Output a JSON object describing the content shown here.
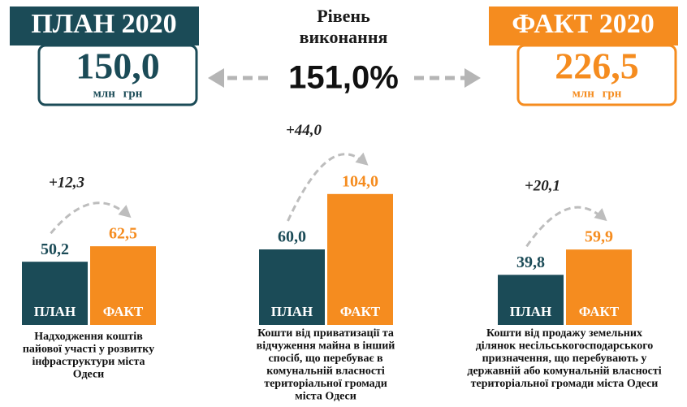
{
  "header": {
    "plan": {
      "title": "ПЛАН 2020",
      "value": "150,0",
      "unit": "млн грн",
      "color": "#1b4b57"
    },
    "fact": {
      "title": "ФАКТ 2020",
      "value": "226,5",
      "unit": "млн грн",
      "color": "#f58c1f"
    },
    "center": {
      "title": [
        "Рівень",
        "виконання"
      ],
      "value": "151,0%"
    }
  },
  "chart_data": [
    {
      "type": "bar",
      "categories": [
        "ПЛАН",
        "ФАКТ"
      ],
      "values": [
        50.2,
        62.5
      ],
      "value_labels": [
        "50,2",
        "62,5"
      ],
      "colors": [
        "#1b4b57",
        "#f58c1f"
      ],
      "annotation": "+12,3",
      "caption": [
        "Надходження коштів",
        "пайової участі у розвитку",
        "інфраструктури міста",
        "Одеси"
      ]
    },
    {
      "type": "bar",
      "categories": [
        "ПЛАН",
        "ФАКТ"
      ],
      "values": [
        60.0,
        104.0
      ],
      "value_labels": [
        "60,0",
        "104,0"
      ],
      "colors": [
        "#1b4b57",
        "#f58c1f"
      ],
      "annotation": "+44,0",
      "caption": [
        "Кошти від приватизації та",
        "відчуження майна в інший",
        "спосіб, що перебуває в",
        "комунальній власності",
        "територіальної громади",
        "міста Одеси"
      ]
    },
    {
      "type": "bar",
      "categories": [
        "ПЛАН",
        "ФАКТ"
      ],
      "values": [
        39.8,
        59.9
      ],
      "value_labels": [
        "39,8",
        "59,9"
      ],
      "colors": [
        "#1b4b57",
        "#f58c1f"
      ],
      "annotation": "+20,1",
      "caption": [
        "Кошти від продажу земельних",
        "ділянок несільськогосподарського",
        "призначення, що перебувають у",
        "державній або комунальній власності",
        "територіальної громади міста Одеси"
      ]
    }
  ]
}
